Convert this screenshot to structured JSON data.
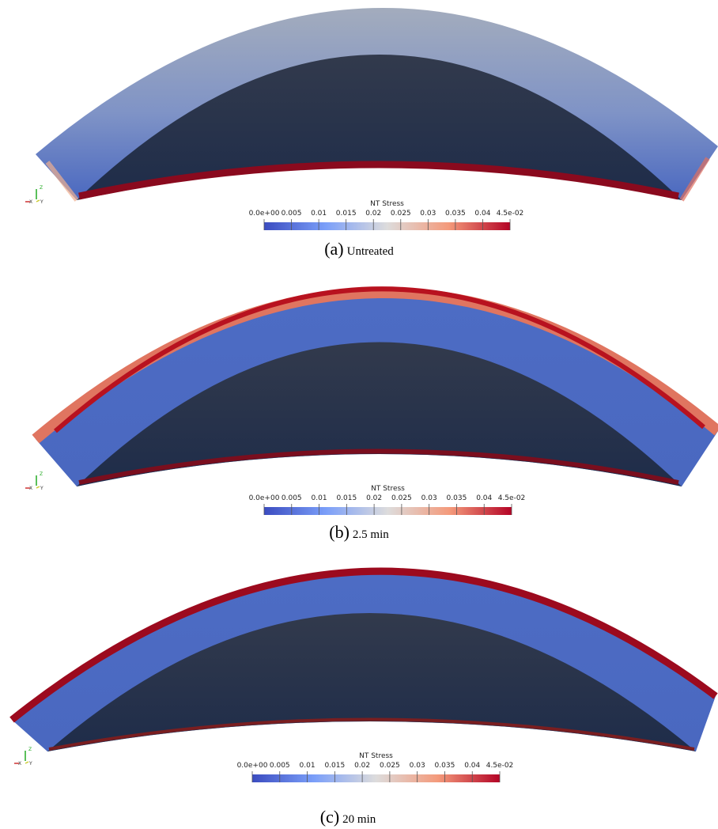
{
  "panels": [
    {
      "label": "(a)",
      "caption": "Untreated",
      "colorbar": {
        "title": "NT Stress",
        "range": [
          0,
          0.045
        ],
        "ticks": [
          {
            "value": 0,
            "label": "0.0e+00"
          },
          0.005,
          0.01,
          0.015,
          0.02,
          0.025,
          0.03,
          0.035,
          0.04,
          {
            "value": 0.045,
            "label": "4.5e-02"
          }
        ]
      },
      "axes": {
        "z": "Z",
        "x": "X",
        "y": "Y"
      }
    },
    {
      "label": "(b)",
      "caption": "2.5 min",
      "colorbar": {
        "title": "NT Stress",
        "range": [
          0,
          0.045
        ],
        "ticks": [
          {
            "value": 0,
            "label": "0.0e+00"
          },
          0.005,
          0.01,
          0.015,
          0.02,
          0.025,
          0.03,
          0.035,
          0.04,
          {
            "value": 0.045,
            "label": "4.5e-02"
          }
        ]
      },
      "axes": {
        "z": "Z",
        "x": "X",
        "y": "Y"
      }
    },
    {
      "label": "(c)",
      "caption": "20 min",
      "colorbar": {
        "title": "NT Stress",
        "range": [
          0,
          0.045
        ],
        "ticks": [
          {
            "value": 0,
            "label": "0.0e+00"
          },
          0.005,
          0.01,
          0.015,
          0.02,
          0.025,
          0.03,
          0.035,
          0.04,
          {
            "value": 0.045,
            "label": "4.5e-02"
          }
        ]
      },
      "axes": {
        "z": "Z",
        "x": "X",
        "y": "Y"
      }
    }
  ]
}
